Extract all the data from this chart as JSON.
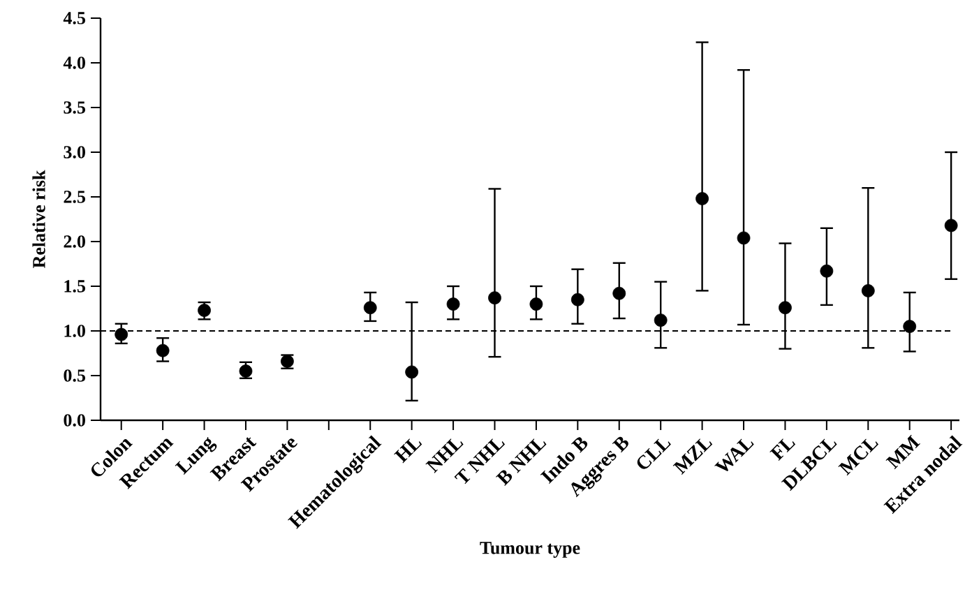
{
  "chart_data": {
    "type": "scatter",
    "xlabel": "Tumour type",
    "ylabel": "Relative risk",
    "categories": [
      "Colon",
      "Rectum",
      "Lung",
      "Breast",
      "Prostate",
      null,
      "Hematological",
      "HL",
      "NHL",
      "T NHL",
      "B NHL",
      "Indo B",
      "Aggres B",
      "CLL",
      "MZL",
      "WAL",
      "FL",
      "DLBCL",
      "MCL",
      "MM",
      "Extra nodal"
    ],
    "values": [
      0.96,
      0.78,
      1.23,
      0.55,
      0.66,
      null,
      1.26,
      0.54,
      1.3,
      1.37,
      1.3,
      1.35,
      1.42,
      1.12,
      2.48,
      2.04,
      1.26,
      1.67,
      1.45,
      1.05,
      2.18
    ],
    "errors": [
      [
        0.86,
        1.08
      ],
      [
        0.66,
        0.92
      ],
      [
        1.13,
        1.32
      ],
      [
        0.47,
        0.65
      ],
      [
        0.58,
        0.73
      ],
      null,
      [
        1.11,
        1.43
      ],
      [
        0.22,
        1.32
      ],
      [
        1.13,
        1.5
      ],
      [
        0.71,
        2.59
      ],
      [
        1.13,
        1.5
      ],
      [
        1.08,
        1.69
      ],
      [
        1.14,
        1.76
      ],
      [
        0.81,
        1.55
      ],
      [
        1.45,
        4.23
      ],
      [
        1.07,
        3.92
      ],
      [
        0.8,
        1.98
      ],
      [
        1.29,
        2.15
      ],
      [
        0.81,
        2.6
      ],
      [
        0.77,
        1.43
      ],
      [
        1.58,
        3.0
      ]
    ],
    "color": "#000000",
    "marker": "circle",
    "ylim": [
      0,
      4.5
    ],
    "yticks": [
      {
        "value": 0,
        "label": "0.0"
      },
      {
        "value": 0.5,
        "label": "0.5"
      },
      {
        "value": 1,
        "label": "1.0"
      },
      {
        "value": 1.5,
        "label": "1.5"
      },
      {
        "value": 2,
        "label": "2.0"
      },
      {
        "value": 2.5,
        "label": "2.5"
      },
      {
        "value": 3,
        "label": "3.0"
      },
      {
        "value": 3.5,
        "label": "3.5"
      },
      {
        "value": 4,
        "label": "4.0"
      },
      {
        "value": 4.5,
        "label": "4.5"
      }
    ],
    "ref_lines": [
      {
        "axis": "y",
        "value": 1,
        "line_style": "dashed",
        "color": "#000000"
      }
    ]
  }
}
